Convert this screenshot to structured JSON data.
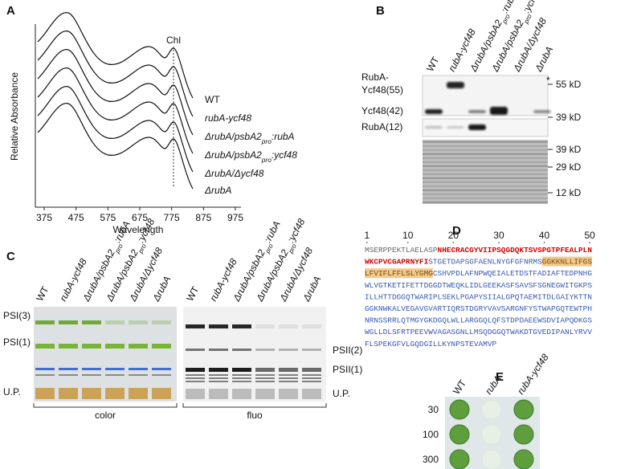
{
  "strains": [
    {
      "segments": [
        {
          "text": "WT"
        }
      ],
      "italic": false
    },
    {
      "segments": [
        {
          "text": "rubA-ycf48"
        }
      ],
      "italic": true
    },
    {
      "segments": [
        {
          "text": "ΔrubA/psbA2"
        },
        {
          "text": "pro",
          "sub": true
        },
        {
          "text": ":rubA"
        }
      ],
      "italic": true
    },
    {
      "segments": [
        {
          "text": "ΔrubA/psbA2"
        },
        {
          "text": "pro",
          "sub": true
        },
        {
          "text": ":ycf48"
        }
      ],
      "italic": true
    },
    {
      "segments": [
        {
          "text": "ΔrubA/Δycf48"
        }
      ],
      "italic": true
    },
    {
      "segments": [
        {
          "text": "ΔrubA"
        }
      ],
      "italic": true
    }
  ],
  "panel_a": {
    "label": "A",
    "y_axis_label": "Relative Absorbance",
    "x_axis_label": "Wavelength",
    "x_ticks": [
      "375",
      "475",
      "575",
      "675",
      "775",
      "875",
      "975"
    ],
    "marker_label": "Chl"
  },
  "panel_b": {
    "label": "B",
    "row_labels": [
      "RubA-",
      "Ycf48(55)",
      "Ycf48(42)",
      "RubA(12)"
    ],
    "asterisk": "*",
    "size_markers": [
      "55 kD",
      "39 kD",
      "39 kD",
      "29 kD",
      "12 kD"
    ]
  },
  "panel_c": {
    "label": "C",
    "left_labels": [
      "PSI(3)",
      "PSI(1)",
      "U.P."
    ],
    "right_labels": [
      "PSII(2)",
      "PSII(1)",
      "U.P."
    ],
    "gel_captions": [
      "color",
      "fluo"
    ]
  },
  "panel_d": {
    "label": "D",
    "ruler": [
      1,
      10,
      20,
      30,
      40,
      50
    ],
    "sequence": [
      [
        {
          "text": "MSERPPEKTLAELASP",
          "color": "#666666"
        },
        {
          "text": "NHECRACGYVIIPSQGDQKTSVSPGTPFEALPLN",
          "color": "#d40000"
        }
      ],
      [
        {
          "text": "WKCPVCGAPRNYFI",
          "color": "#d40000"
        },
        {
          "text": "STGETDAPSGFAENLNYGFGFNRMS",
          "color": "#3557b0"
        },
        {
          "text": "GGKKNLLIFGS",
          "color": "#7a4a00",
          "highlight": "#f3c98e"
        }
      ],
      [
        {
          "text": "LFVIFLFFLSLYGMG",
          "color": "#7a4a00",
          "highlight": "#f3c98e"
        },
        {
          "text": "CSHVPDLAFNPWQEIALETDSTFADIAFTEDPNHG",
          "color": "#3557b0"
        }
      ],
      [
        {
          "text": "WLVGTKETIFETTDGGDTWEQKLIDLGEEKASFSAVSFSGNEGWITGKPS",
          "color": "#3557b0"
        }
      ],
      [
        {
          "text": "ILLHTTDGGQTWARIPLSEKLPGAPYSIIALGPQTAEMITDLGAIYKTTN",
          "color": "#3557b0"
        }
      ],
      [
        {
          "text": "GGKNWKALVEGAVGVARTIQRSTDGRYVAVSARGNFYSTWAPGQTEWTPH",
          "color": "#3557b0"
        }
      ],
      [
        {
          "text": "NRNSSRRLQTMGYGKDGQLWLLARGGQLQFSTDPDAEEWSDVIAPQDKGS",
          "color": "#3557b0"
        }
      ],
      [
        {
          "text": "WGLLDLSFRTPEEVWVAGASGNLLMSQDGGQTWAKDTGVEDIPANLYRVV",
          "color": "#3557b0"
        }
      ],
      [
        {
          "text": "FLSPEKGFVLGQDGILLKYNPSTEVAMVP",
          "color": "#3557b0"
        }
      ]
    ]
  },
  "panel_e": {
    "label": "E",
    "strains": [
      "WT",
      "rubA",
      "rubA-ycf48"
    ],
    "dilutions": [
      "30",
      "100",
      "300"
    ]
  }
}
